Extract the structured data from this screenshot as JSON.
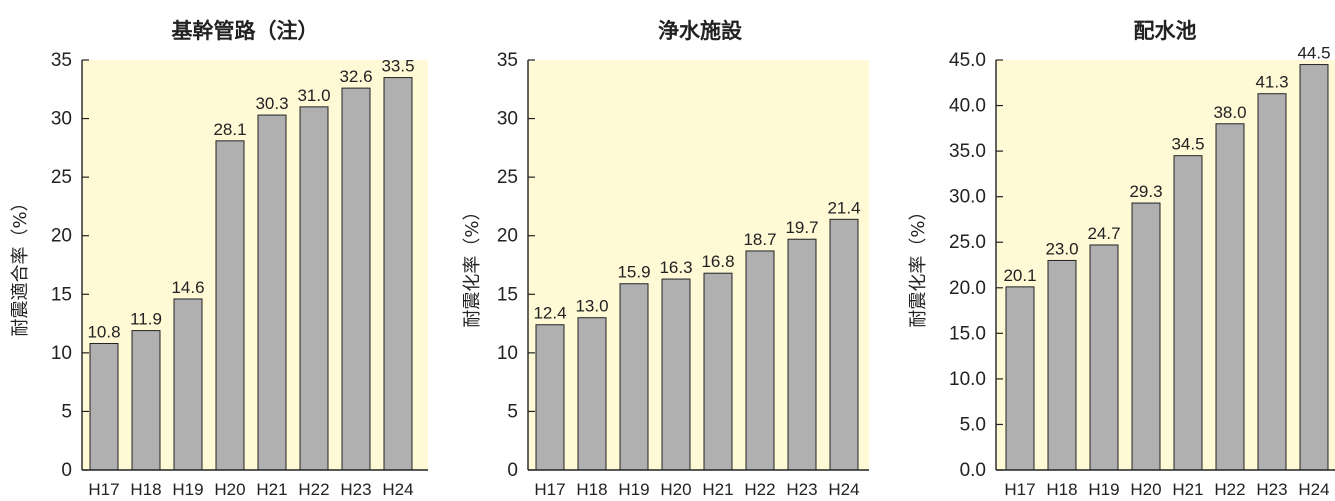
{
  "chart_data": [
    {
      "type": "bar",
      "title": "基幹管路（注）",
      "ylabel": "耐震適合率（%）",
      "categories": [
        "H17",
        "H18",
        "H19",
        "H20",
        "H21",
        "H22",
        "H23",
        "H24"
      ],
      "values": [
        10.8,
        11.9,
        14.6,
        28.1,
        30.3,
        31.0,
        32.6,
        33.5
      ],
      "value_labels": [
        "10.8",
        "11.9",
        "14.6",
        "28.1",
        "30.3",
        "31.0",
        "32.6",
        "33.5"
      ],
      "ylim": [
        0,
        35
      ],
      "yticks": [
        0,
        5,
        10,
        15,
        20,
        25,
        30,
        35
      ],
      "ytick_labels": [
        "0",
        "5",
        "10",
        "15",
        "20",
        "25",
        "30",
        "35"
      ],
      "plot_background": "#fff9d6",
      "bar_color": "#b0b0b0"
    },
    {
      "type": "bar",
      "title": "浄水施設",
      "ylabel": "耐震化率（%）",
      "categories": [
        "H17",
        "H18",
        "H19",
        "H20",
        "H21",
        "H22",
        "H23",
        "H24"
      ],
      "values": [
        12.4,
        13.0,
        15.9,
        16.3,
        16.8,
        18.7,
        19.7,
        21.4
      ],
      "value_labels": [
        "12.4",
        "13.0",
        "15.9",
        "16.3",
        "16.8",
        "18.7",
        "19.7",
        "21.4"
      ],
      "ylim": [
        0,
        35
      ],
      "yticks": [
        0,
        5,
        10,
        15,
        20,
        25,
        30,
        35
      ],
      "ytick_labels": [
        "0",
        "5",
        "10",
        "15",
        "20",
        "25",
        "30",
        "35"
      ],
      "plot_background": "#fff9d6",
      "bar_color": "#b0b0b0"
    },
    {
      "type": "bar",
      "title": "配水池",
      "ylabel": "耐震化率（%）",
      "categories": [
        "H17",
        "H18",
        "H19",
        "H20",
        "H21",
        "H22",
        "H23",
        "H24"
      ],
      "values": [
        20.1,
        23.0,
        24.7,
        29.3,
        34.5,
        38.0,
        41.3,
        44.5
      ],
      "value_labels": [
        "20.1",
        "23.0",
        "24.7",
        "29.3",
        "34.5",
        "38.0",
        "41.3",
        "44.5"
      ],
      "ylim": [
        0,
        45
      ],
      "yticks": [
        0,
        5,
        10,
        15,
        20,
        25,
        30,
        35,
        40,
        45
      ],
      "ytick_labels": [
        "0.0",
        "5.0",
        "10.0",
        "15.0",
        "20.0",
        "25.0",
        "30.0",
        "35.0",
        "40.0",
        "45.0"
      ],
      "plot_background": "#fff9d6",
      "bar_color": "#b0b0b0"
    }
  ]
}
